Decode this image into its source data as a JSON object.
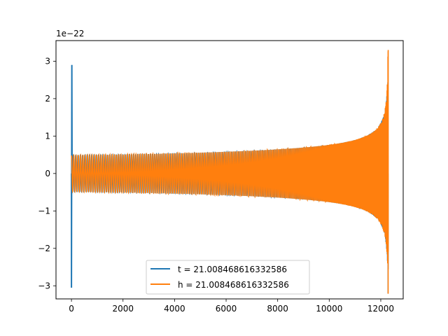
{
  "chart_data": {
    "type": "line",
    "title": "",
    "xlabel": "",
    "ylabel": "",
    "offset_text": "1e−22",
    "xlim": [
      -600,
      12870
    ],
    "ylim": [
      -3.35,
      3.55
    ],
    "y_scale_exponent": -22,
    "x_ticks": [
      0,
      2000,
      4000,
      6000,
      8000,
      10000,
      12000
    ],
    "x_tick_labels": [
      "0",
      "2000",
      "4000",
      "6000",
      "8000",
      "10000",
      "12000"
    ],
    "y_ticks": [
      -3,
      -2,
      -1,
      0,
      1,
      2,
      3
    ],
    "y_tick_labels": [
      "−3",
      "−2",
      "−1",
      "0",
      "1",
      "2",
      "3"
    ],
    "grid": false,
    "legend_position": "lower center",
    "series": [
      {
        "name": "t = 21.008468616332586",
        "color": "#1f77b4",
        "x_range": [
          0,
          12290
        ],
        "amplitude_start": 0.5,
        "amplitude_end": 3.3,
        "initial_spike": [
          -3.05,
          2.9
        ],
        "note_chirp": "inspiral chirp waveform, frequency and amplitude increase toward merger"
      },
      {
        "name": "h = 21.008468616332586",
        "color": "#ff7f0e",
        "x_range": [
          0,
          12290
        ],
        "amplitude_start": 0.5,
        "amplitude_end": 3.3,
        "note_chirp": "inspiral chirp waveform, frequency and amplitude increase toward merger"
      }
    ]
  }
}
